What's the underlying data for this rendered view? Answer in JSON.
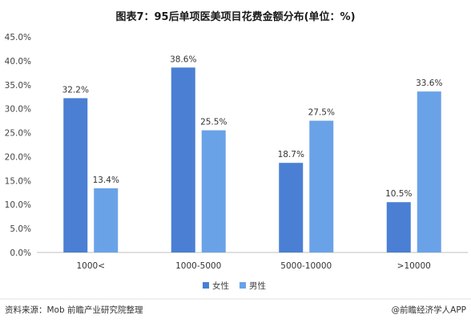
{
  "chart_data": {
    "type": "bar",
    "title": "图表7：95后单项医美项目花费金额分布(单位：%)",
    "categories": [
      "1000<",
      "1000-5000",
      "5000-10000",
      ">10000"
    ],
    "series": [
      {
        "name": "女性",
        "values": [
          32.2,
          38.6,
          18.7,
          10.5
        ],
        "labels": [
          "32.2%",
          "38.6%",
          "18.7%",
          "10.5%"
        ],
        "color": "#4a7fd4"
      },
      {
        "name": "男性",
        "values": [
          13.4,
          25.5,
          27.5,
          33.6
        ],
        "labels": [
          "13.4%",
          "25.5%",
          "27.5%",
          "33.6%"
        ],
        "color": "#6aa2e8"
      }
    ],
    "y_ticks": [
      "0.0%",
      "5.0%",
      "10.0%",
      "15.0%",
      "20.0%",
      "25.0%",
      "30.0%",
      "35.0%",
      "40.0%",
      "45.0%"
    ],
    "ylim": [
      0,
      45
    ],
    "grid": false,
    "legend": "bottom-center"
  },
  "footer": {
    "source": "资料来源：Mob 前瞻产业研究院整理",
    "brand": "@前瞻经济学人APP"
  }
}
